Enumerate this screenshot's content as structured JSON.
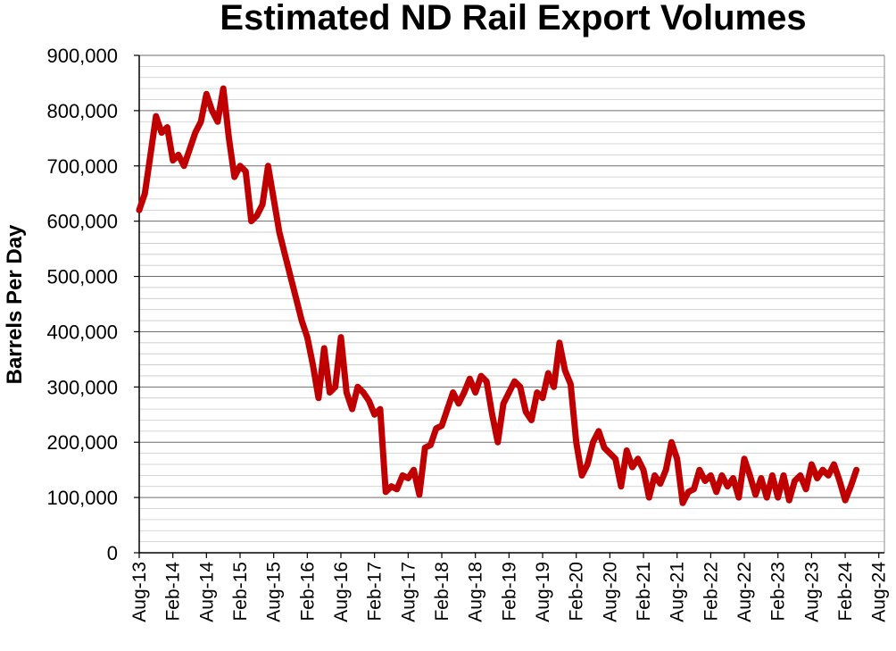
{
  "chart_data": {
    "type": "line",
    "title": "Estimated ND Rail Export Volumes",
    "ylabel": "Barrels Per Day",
    "xlabel": "",
    "ylim": [
      0,
      900000
    ],
    "y_ticks": [
      0,
      100000,
      200000,
      300000,
      400000,
      500000,
      600000,
      700000,
      800000,
      900000
    ],
    "y_tick_labels": [
      "0",
      "100,000",
      "200,000",
      "300,000",
      "400,000",
      "500,000",
      "600,000",
      "700,000",
      "800,000",
      "900,000"
    ],
    "x_range": [
      "2013-08",
      "2024-09"
    ],
    "x_tick_labels": [
      "Aug-13",
      "Feb-14",
      "Aug-14",
      "Feb-15",
      "Aug-15",
      "Feb-16",
      "Aug-16",
      "Feb-17",
      "Aug-17",
      "Feb-18",
      "Aug-18",
      "Feb-19",
      "Aug-19",
      "Feb-20",
      "Aug-20",
      "Feb-21",
      "Aug-21",
      "Feb-22",
      "Aug-22",
      "Feb-23",
      "Aug-23",
      "Feb-24",
      "Aug-24"
    ],
    "grid": true,
    "legend": "none",
    "series": [
      {
        "color": "#C00000",
        "points": [
          [
            "2013-08",
            620000
          ],
          [
            "2013-09",
            650000
          ],
          [
            "2013-10",
            720000
          ],
          [
            "2013-11",
            790000
          ],
          [
            "2013-12",
            760000
          ],
          [
            "2014-01",
            770000
          ],
          [
            "2014-02",
            710000
          ],
          [
            "2014-03",
            720000
          ],
          [
            "2014-04",
            700000
          ],
          [
            "2014-05",
            730000
          ],
          [
            "2014-06",
            760000
          ],
          [
            "2014-07",
            780000
          ],
          [
            "2014-08",
            830000
          ],
          [
            "2014-09",
            800000
          ],
          [
            "2014-10",
            780000
          ],
          [
            "2014-11",
            840000
          ],
          [
            "2014-12",
            750000
          ],
          [
            "2015-01",
            680000
          ],
          [
            "2015-02",
            700000
          ],
          [
            "2015-03",
            690000
          ],
          [
            "2015-04",
            600000
          ],
          [
            "2015-05",
            610000
          ],
          [
            "2015-06",
            630000
          ],
          [
            "2015-07",
            700000
          ],
          [
            "2015-08",
            640000
          ],
          [
            "2015-09",
            580000
          ],
          [
            "2015-10",
            540000
          ],
          [
            "2015-11",
            500000
          ],
          [
            "2015-12",
            460000
          ],
          [
            "2016-01",
            420000
          ],
          [
            "2016-02",
            390000
          ],
          [
            "2016-03",
            340000
          ],
          [
            "2016-04",
            280000
          ],
          [
            "2016-05",
            370000
          ],
          [
            "2016-06",
            290000
          ],
          [
            "2016-07",
            300000
          ],
          [
            "2016-08",
            390000
          ],
          [
            "2016-09",
            290000
          ],
          [
            "2016-10",
            260000
          ],
          [
            "2016-11",
            300000
          ],
          [
            "2016-12",
            290000
          ],
          [
            "2017-01",
            275000
          ],
          [
            "2017-02",
            250000
          ],
          [
            "2017-03",
            260000
          ],
          [
            "2017-04",
            110000
          ],
          [
            "2017-05",
            120000
          ],
          [
            "2017-06",
            115000
          ],
          [
            "2017-07",
            140000
          ],
          [
            "2017-08",
            135000
          ],
          [
            "2017-09",
            150000
          ],
          [
            "2017-10",
            105000
          ],
          [
            "2017-11",
            190000
          ],
          [
            "2017-12",
            195000
          ],
          [
            "2018-01",
            225000
          ],
          [
            "2018-02",
            230000
          ],
          [
            "2018-03",
            260000
          ],
          [
            "2018-04",
            290000
          ],
          [
            "2018-05",
            270000
          ],
          [
            "2018-06",
            290000
          ],
          [
            "2018-07",
            315000
          ],
          [
            "2018-08",
            290000
          ],
          [
            "2018-09",
            320000
          ],
          [
            "2018-10",
            310000
          ],
          [
            "2018-11",
            250000
          ],
          [
            "2018-12",
            200000
          ],
          [
            "2019-01",
            270000
          ],
          [
            "2019-02",
            290000
          ],
          [
            "2019-03",
            310000
          ],
          [
            "2019-04",
            300000
          ],
          [
            "2019-05",
            255000
          ],
          [
            "2019-06",
            240000
          ],
          [
            "2019-07",
            290000
          ],
          [
            "2019-08",
            280000
          ],
          [
            "2019-09",
            325000
          ],
          [
            "2019-10",
            300000
          ],
          [
            "2019-11",
            380000
          ],
          [
            "2019-12",
            330000
          ],
          [
            "2020-01",
            305000
          ],
          [
            "2020-02",
            200000
          ],
          [
            "2020-03",
            140000
          ],
          [
            "2020-04",
            160000
          ],
          [
            "2020-05",
            200000
          ],
          [
            "2020-06",
            220000
          ],
          [
            "2020-07",
            190000
          ],
          [
            "2020-08",
            180000
          ],
          [
            "2020-09",
            170000
          ],
          [
            "2020-10",
            120000
          ],
          [
            "2020-11",
            185000
          ],
          [
            "2020-12",
            155000
          ],
          [
            "2021-01",
            170000
          ],
          [
            "2021-02",
            150000
          ],
          [
            "2021-03",
            100000
          ],
          [
            "2021-04",
            140000
          ],
          [
            "2021-05",
            125000
          ],
          [
            "2021-06",
            150000
          ],
          [
            "2021-07",
            200000
          ],
          [
            "2021-08",
            170000
          ],
          [
            "2021-09",
            90000
          ],
          [
            "2021-10",
            110000
          ],
          [
            "2021-11",
            115000
          ],
          [
            "2021-12",
            150000
          ],
          [
            "2022-01",
            130000
          ],
          [
            "2022-02",
            140000
          ],
          [
            "2022-03",
            110000
          ],
          [
            "2022-04",
            140000
          ],
          [
            "2022-05",
            120000
          ],
          [
            "2022-06",
            135000
          ],
          [
            "2022-07",
            100000
          ],
          [
            "2022-08",
            170000
          ],
          [
            "2022-09",
            140000
          ],
          [
            "2022-10",
            105000
          ],
          [
            "2022-11",
            135000
          ],
          [
            "2022-12",
            100000
          ],
          [
            "2023-01",
            140000
          ],
          [
            "2023-02",
            100000
          ],
          [
            "2023-03",
            140000
          ],
          [
            "2023-04",
            95000
          ],
          [
            "2023-05",
            130000
          ],
          [
            "2023-06",
            140000
          ],
          [
            "2023-07",
            115000
          ],
          [
            "2023-08",
            160000
          ],
          [
            "2023-09",
            135000
          ],
          [
            "2023-10",
            150000
          ],
          [
            "2023-11",
            140000
          ],
          [
            "2023-12",
            160000
          ],
          [
            "2024-01",
            130000
          ],
          [
            "2024-02",
            95000
          ],
          [
            "2024-03",
            120000
          ],
          [
            "2024-04",
            150000
          ]
        ]
      }
    ]
  }
}
